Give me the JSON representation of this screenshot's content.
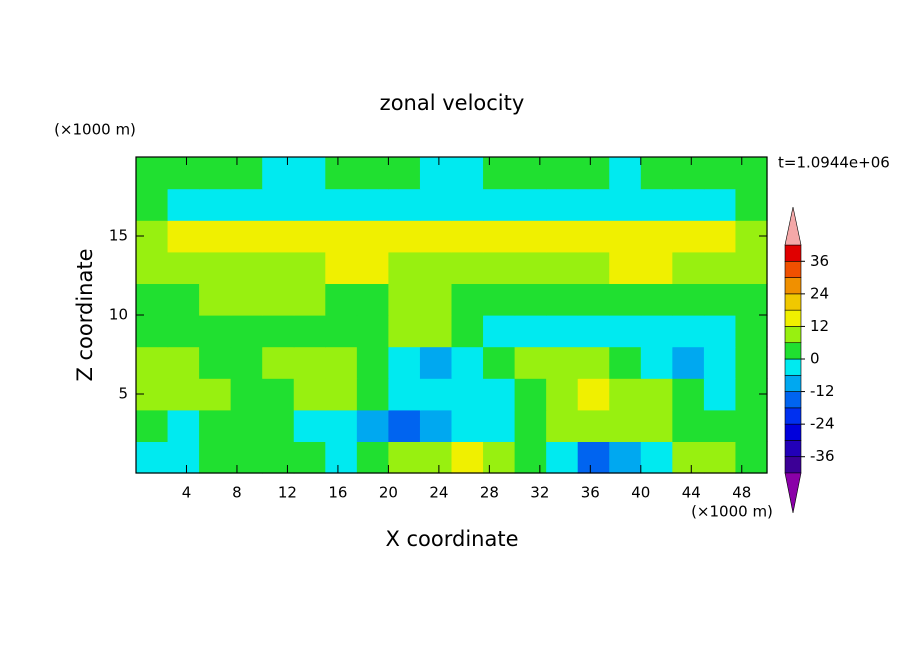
{
  "chart_data": {
    "type": "contourf",
    "title": "zonal velocity",
    "xlabel": "X coordinate",
    "ylabel": "Z coordinate",
    "xunit": "(×1000 m)",
    "yunit": "(×1000 m)",
    "annotation": "t=1.0944e+06",
    "xlim": [
      0,
      50
    ],
    "ylim": [
      0,
      20
    ],
    "xticks": [
      4,
      8,
      12,
      16,
      20,
      24,
      28,
      32,
      36,
      40,
      44,
      48
    ],
    "yticks": [
      5,
      10,
      15
    ],
    "x": [
      1.25,
      3.75,
      6.25,
      8.75,
      11.25,
      13.75,
      16.25,
      18.75,
      21.25,
      23.75,
      26.25,
      28.75,
      31.25,
      33.75,
      36.25,
      38.75,
      41.25,
      43.75,
      46.25,
      48.75
    ],
    "y": [
      1,
      3,
      5,
      7,
      9,
      11,
      13,
      15,
      17,
      19
    ],
    "z": [
      [
        -5,
        -5,
        3,
        3,
        3,
        3,
        -5,
        3,
        9,
        9,
        15,
        9,
        3,
        -5,
        -14,
        -10,
        -5,
        9,
        9,
        3
      ],
      [
        3,
        -5,
        3,
        3,
        3,
        -5,
        -5,
        -10,
        -14,
        -10,
        -5,
        -5,
        3,
        9,
        9,
        9,
        9,
        3,
        3,
        3
      ],
      [
        9,
        9,
        9,
        3,
        3,
        9,
        9,
        3,
        -5,
        -5,
        -5,
        -5,
        3,
        9,
        15,
        9,
        9,
        3,
        -5,
        3
      ],
      [
        9,
        9,
        3,
        3,
        9,
        9,
        9,
        3,
        -5,
        -10,
        -5,
        3,
        9,
        9,
        9,
        3,
        -5,
        -10,
        -5,
        3
      ],
      [
        3,
        3,
        3,
        3,
        3,
        3,
        3,
        3,
        9,
        9,
        3,
        -5,
        -5,
        -5,
        -5,
        -5,
        -5,
        -5,
        -5,
        3
      ],
      [
        3,
        3,
        9,
        9,
        9,
        9,
        3,
        3,
        9,
        9,
        3,
        3,
        3,
        3,
        3,
        3,
        3,
        3,
        3,
        3
      ],
      [
        9,
        9,
        9,
        9,
        9,
        9,
        15,
        15,
        9,
        9,
        9,
        9,
        9,
        9,
        9,
        15,
        15,
        9,
        9,
        9
      ],
      [
        9,
        15,
        15,
        15,
        15,
        15,
        15,
        15,
        15,
        15,
        15,
        15,
        15,
        15,
        15,
        15,
        15,
        15,
        15,
        9
      ],
      [
        3,
        -5,
        -5,
        -5,
        -5,
        -5,
        -5,
        -5,
        -5,
        -5,
        -5,
        -5,
        -5,
        -5,
        -5,
        -5,
        -5,
        -5,
        -5,
        3
      ],
      [
        3,
        3,
        3,
        3,
        -5,
        -5,
        3,
        3,
        3,
        -5,
        -5,
        3,
        3,
        3,
        3,
        -5,
        3,
        3,
        3,
        3
      ]
    ],
    "levels": [
      -42,
      -36,
      -30,
      -24,
      -18,
      -12,
      -6,
      0,
      6,
      12,
      18,
      24,
      30,
      36,
      42
    ],
    "colors": [
      "#3c0096",
      "#2200b8",
      "#0000dc",
      "#0030f0",
      "#0064f0",
      "#00a8f0",
      "#00eaf0",
      "#20e030",
      "#98f010",
      "#f0f000",
      "#f0c800",
      "#f09000",
      "#f05000",
      "#e00000"
    ],
    "under_color": "#8a00a8",
    "over_color": "#f4a8a8",
    "colorbar_ticks": [
      -36,
      -24,
      -12,
      0,
      12,
      24,
      36
    ]
  }
}
